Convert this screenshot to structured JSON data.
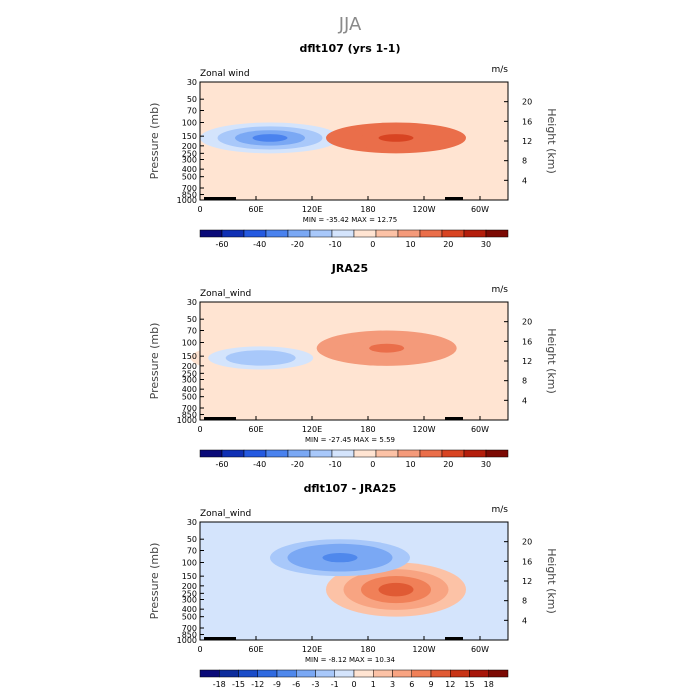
{
  "page_title": "JJA",
  "chart_data": [
    {
      "type": "heatmap",
      "title": "dflt107 (yrs 1-1)",
      "variable_label": "Zonal wind",
      "units": "m/s",
      "ylabel": "Pressure (mb)",
      "ylabel_right": "Height (km)",
      "x_ticks": [
        "0",
        "60E",
        "120E",
        "180",
        "120W",
        "60W"
      ],
      "y_ticks": [
        "30",
        "50",
        "70",
        "100",
        "150",
        "200",
        "250",
        "300",
        "400",
        "500",
        "700",
        "850",
        "1000"
      ],
      "y_ticks_right": [
        "20",
        "16",
        "12",
        "8",
        "4"
      ],
      "stats": "MIN = -35.42   MAX =  12.75",
      "colorbar_labels": [
        "-60",
        "-40",
        "-20",
        "-10",
        "0",
        "10",
        "20",
        "30"
      ],
      "colorbar_colors": [
        "#0a0a78",
        "#1030b4",
        "#2459e0",
        "#4a82ee",
        "#7aa8f4",
        "#a8c8fa",
        "#d4e4fc",
        "#ffe4d2",
        "#fcc2a6",
        "#f49a7a",
        "#ea6e4a",
        "#d84422",
        "#b41e0c",
        "#7c0a04"
      ],
      "features": [
        {
          "name": "Westerly jet core (blue), ~150 mb near 75E",
          "lon_center": 75,
          "p_top": 100,
          "p_bottom": 250,
          "value": -35
        },
        {
          "name": "Easterly maximum (red), ~150 mb near 150W",
          "lon_center": 210,
          "p_top": 100,
          "p_bottom": 250,
          "value": 12
        }
      ]
    },
    {
      "type": "heatmap",
      "title": "JRA25",
      "variable_label": "Zonal_wind",
      "units": "m/s",
      "ylabel": "Pressure (mb)",
      "ylabel_right": "Height (km)",
      "x_ticks": [
        "0",
        "60E",
        "120E",
        "180",
        "120W",
        "60W"
      ],
      "y_ticks": [
        "30",
        "50",
        "70",
        "100",
        "150",
        "200",
        "250",
        "300",
        "400",
        "500",
        "700",
        "850",
        "1000"
      ],
      "y_ticks_right": [
        "20",
        "16",
        "12",
        "8",
        "4"
      ],
      "stats": "MIN = -27.45   MAX =   5.59",
      "colorbar_labels": [
        "-60",
        "-40",
        "-20",
        "-10",
        "0",
        "10",
        "20",
        "30"
      ],
      "colorbar_colors": [
        "#0a0a78",
        "#1030b4",
        "#2459e0",
        "#4a82ee",
        "#7aa8f4",
        "#a8c8fa",
        "#d4e4fc",
        "#ffe4d2",
        "#fcc2a6",
        "#f49a7a",
        "#ea6e4a",
        "#d84422",
        "#b41e0c",
        "#7c0a04"
      ],
      "features": [
        {
          "name": "Westerly jet core (blue), ~150 mb near 65E",
          "lon_center": 65,
          "p_top": 100,
          "p_bottom": 250,
          "value": -27
        },
        {
          "name": "Weak easterlies (light orange), upper troposphere",
          "lon_center": 200,
          "p_top": 70,
          "p_bottom": 200,
          "value": 5
        }
      ]
    },
    {
      "type": "heatmap",
      "title": "dflt107 - JRA25",
      "variable_label": "Zonal_wind",
      "units": "m/s",
      "ylabel": "Pressure (mb)",
      "ylabel_right": "Height (km)",
      "x_ticks": [
        "0",
        "60E",
        "120E",
        "180",
        "120W",
        "60W"
      ],
      "y_ticks": [
        "30",
        "50",
        "70",
        "100",
        "150",
        "200",
        "250",
        "300",
        "400",
        "500",
        "700",
        "850",
        "1000"
      ],
      "y_ticks_right": [
        "20",
        "16",
        "12",
        "8",
        "4"
      ],
      "stats": "MIN =  -8.12   MAX =  10.34",
      "colorbar_labels": [
        "-18",
        "-15",
        "-12",
        "-9",
        "-6",
        "-3",
        "-1",
        "0",
        "1",
        "3",
        "6",
        "9",
        "12",
        "15",
        "18"
      ],
      "colorbar_colors": [
        "#0a0a78",
        "#0c2c9c",
        "#1a4cc8",
        "#2f6ae0",
        "#4f88ec",
        "#7aa8f4",
        "#a8c8fa",
        "#d4e4fc",
        "#ffe4d2",
        "#fcc2a6",
        "#f8a482",
        "#f08058",
        "#e05a34",
        "#c83416",
        "#a8160a",
        "#7c0a04"
      ],
      "features": [
        {
          "name": "Positive difference (red), ~200 mb near 150W",
          "lon_center": 210,
          "p_top": 100,
          "p_bottom": 500,
          "value": 10
        },
        {
          "name": "Negative difference (blue) band, 50-150 mb",
          "lon_center": 150,
          "p_top": 50,
          "p_bottom": 150,
          "value": -8
        }
      ]
    }
  ]
}
